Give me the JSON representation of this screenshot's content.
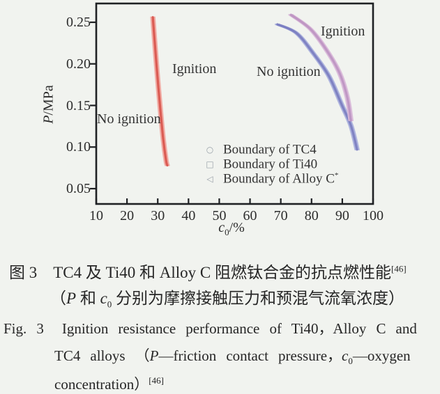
{
  "figure": {
    "chart": {
      "ylabel": {
        "italic": "P",
        "rest": "/MPa"
      },
      "xlabel": {
        "italic": "c",
        "sub": "0",
        "rest": "/%"
      },
      "annotations": {
        "ignition_left": "Ignition",
        "no_ignition_left": "No ignition",
        "no_ignition_right": "No ignition",
        "ignition_right": "Ignition"
      },
      "legend": [
        {
          "marker": "circle-icon",
          "glyph": "○",
          "label": "Boundary of TC4",
          "sup": ""
        },
        {
          "marker": "square-icon",
          "glyph": "□",
          "label": "Boundary of Ti40",
          "sup": ""
        },
        {
          "marker": "triangle-left-icon",
          "glyph": "◁",
          "label": "Boundary of Alloy C",
          "sup": "*"
        }
      ]
    },
    "caption_cn": {
      "line1": {
        "text": "图 3　TC4 及 Ti40 和 Alloy C 阻燃钛合金的抗点燃性能",
        "sup": "[46]"
      },
      "line2": {
        "open": "（",
        "p": "P",
        "mid": " 和 ",
        "c": "c",
        "sub": "0",
        "rest": " 分别为摩擦接触压力和预混气流氧浓度）"
      }
    },
    "caption_en": {
      "line1": {
        "fig": "Fig. 3",
        "rest": "Ignition resistance performance of Ti40，Alloy C and"
      },
      "line2": {
        "t1": "TC4 alloys （",
        "p": "P",
        "t2": "—friction contact pressure，",
        "c": "c",
        "sub": "0",
        "t3": "—oxygen"
      },
      "line3": {
        "text": "concentration）",
        "sup": "[46]"
      }
    }
  },
  "chart_data": {
    "type": "line",
    "title": "",
    "xlabel": "c0/%",
    "ylabel": "P/MPa",
    "xlim": [
      10,
      100
    ],
    "ylim": [
      0.03,
      0.2725
    ],
    "xticks": [
      10,
      20,
      30,
      40,
      50,
      60,
      70,
      80,
      90,
      100
    ],
    "yticks": [
      0.05,
      0.1,
      0.15,
      0.2,
      0.25
    ],
    "grid": false,
    "legend_position": "inside lower-center",
    "region_labels": {
      "left_of_each_boundary": "No ignition",
      "right_of_each_boundary": "Ignition"
    },
    "series": [
      {
        "name": "Boundary of TC4",
        "color": "#d9534b",
        "color_light": "#f0a8a0",
        "points": [
          [
            28.4,
            0.256
          ],
          [
            29.0,
            0.227
          ],
          [
            29.9,
            0.185
          ],
          [
            30.9,
            0.143
          ],
          [
            31.8,
            0.109
          ],
          [
            32.7,
            0.084
          ],
          [
            33.1,
            0.078
          ]
        ]
      },
      {
        "name": "Boundary of Ti40",
        "color": "#797cc0",
        "color_light": "#aab0dc",
        "points": [
          [
            68.9,
            0.2475
          ],
          [
            75.1,
            0.237
          ],
          [
            80.7,
            0.212
          ],
          [
            85.7,
            0.185
          ],
          [
            89.8,
            0.151
          ],
          [
            92.8,
            0.126
          ],
          [
            94.8,
            0.097
          ]
        ]
      },
      {
        "name": "Boundary of Alloy C*",
        "color": "#bd92c2",
        "color_light": "#d8b8d8",
        "points": [
          [
            73.3,
            0.259
          ],
          [
            79.6,
            0.242
          ],
          [
            84.8,
            0.217
          ],
          [
            89.1,
            0.189
          ],
          [
            91.6,
            0.16
          ],
          [
            92.8,
            0.132
          ]
        ]
      }
    ]
  }
}
